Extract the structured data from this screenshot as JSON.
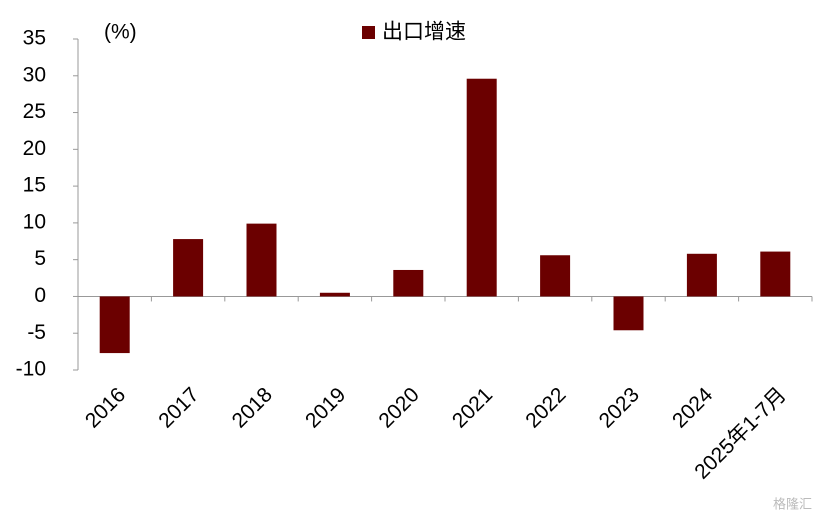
{
  "chart_data": {
    "type": "bar",
    "y_label": "(%)",
    "categories": [
      "2016",
      "2017",
      "2018",
      "2019",
      "2020",
      "2021",
      "2022",
      "2023",
      "2024",
      "2025年1-7月"
    ],
    "series": [
      {
        "name": "出口增速",
        "color": "#6b0000",
        "values": [
          -7.7,
          7.8,
          9.9,
          0.5,
          3.6,
          29.6,
          5.6,
          -4.6,
          5.8,
          6.1
        ]
      }
    ],
    "ylim": [
      -10,
      35
    ],
    "yticks": [
      -10,
      -5,
      0,
      5,
      10,
      15,
      20,
      25,
      30,
      35
    ],
    "grid": false
  },
  "watermark": "格隆汇"
}
